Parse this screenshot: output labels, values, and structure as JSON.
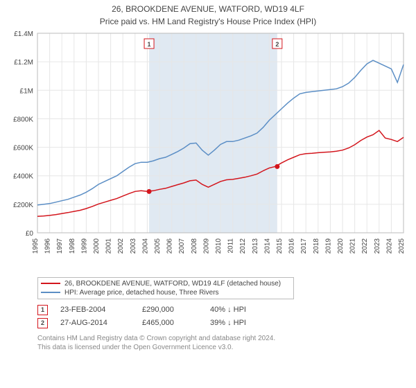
{
  "chart": {
    "title": "26, BROOKDENE AVENUE, WATFORD, WD19 4LF",
    "subtitle": "Price paid vs. HM Land Registry's House Price Index (HPI)",
    "type": "line",
    "background_color": "#ffffff",
    "grid_color": "#e6e6e6",
    "shade_color": "#e0e9f2",
    "shade_xstart": 2004.15,
    "shade_xend": 2014.65,
    "xlim": [
      1995,
      2025
    ],
    "ylim": [
      0,
      1400000
    ],
    "ytick_step": 200000,
    "ytick_labels": [
      "£0",
      "£200K",
      "£400K",
      "£600K",
      "£800K",
      "£1M",
      "£1.2M",
      "£1.4M"
    ],
    "xtick_step": 1,
    "label_fontsize": 11,
    "tick_fontsize": 10,
    "line_width": 1.5,
    "series": [
      {
        "name": "hpi",
        "label": "HPI: Average price, detached house, Three Rivers",
        "color": "#5b8ec5",
        "data": [
          [
            1995,
            195000
          ],
          [
            1995.5,
            200000
          ],
          [
            1996,
            205000
          ],
          [
            1996.5,
            215000
          ],
          [
            1997,
            225000
          ],
          [
            1997.5,
            235000
          ],
          [
            1998,
            250000
          ],
          [
            1998.5,
            265000
          ],
          [
            1999,
            285000
          ],
          [
            1999.5,
            310000
          ],
          [
            2000,
            340000
          ],
          [
            2000.5,
            360000
          ],
          [
            2001,
            380000
          ],
          [
            2001.5,
            400000
          ],
          [
            2002,
            430000
          ],
          [
            2002.5,
            460000
          ],
          [
            2003,
            485000
          ],
          [
            2003.5,
            495000
          ],
          [
            2004,
            495000
          ],
          [
            2004.5,
            505000
          ],
          [
            2005,
            520000
          ],
          [
            2005.5,
            530000
          ],
          [
            2006,
            550000
          ],
          [
            2006.5,
            570000
          ],
          [
            2007,
            595000
          ],
          [
            2007.5,
            625000
          ],
          [
            2008,
            630000
          ],
          [
            2008.5,
            580000
          ],
          [
            2009,
            545000
          ],
          [
            2009.5,
            580000
          ],
          [
            2010,
            620000
          ],
          [
            2010.5,
            640000
          ],
          [
            2011,
            640000
          ],
          [
            2011.5,
            650000
          ],
          [
            2012,
            665000
          ],
          [
            2012.5,
            680000
          ],
          [
            2013,
            700000
          ],
          [
            2013.5,
            740000
          ],
          [
            2014,
            790000
          ],
          [
            2014.5,
            830000
          ],
          [
            2015,
            870000
          ],
          [
            2015.5,
            910000
          ],
          [
            2016,
            945000
          ],
          [
            2016.5,
            975000
          ],
          [
            2017,
            985000
          ],
          [
            2017.5,
            990000
          ],
          [
            2018,
            995000
          ],
          [
            2018.5,
            1000000
          ],
          [
            2019,
            1005000
          ],
          [
            2019.5,
            1010000
          ],
          [
            2020,
            1025000
          ],
          [
            2020.5,
            1050000
          ],
          [
            2021,
            1090000
          ],
          [
            2021.5,
            1140000
          ],
          [
            2022,
            1185000
          ],
          [
            2022.5,
            1210000
          ],
          [
            2023,
            1190000
          ],
          [
            2023.5,
            1170000
          ],
          [
            2024,
            1150000
          ],
          [
            2024.5,
            1055000
          ],
          [
            2025,
            1180000
          ]
        ]
      },
      {
        "name": "property",
        "label": "26, BROOKDENE AVENUE, WATFORD, WD19 4LF (detached house)",
        "color": "#d3151c",
        "data": [
          [
            1995,
            115000
          ],
          [
            1995.5,
            118000
          ],
          [
            1996,
            122000
          ],
          [
            1996.5,
            128000
          ],
          [
            1997,
            135000
          ],
          [
            1997.5,
            142000
          ],
          [
            1998,
            150000
          ],
          [
            1998.5,
            158000
          ],
          [
            1999,
            170000
          ],
          [
            1999.5,
            185000
          ],
          [
            2000,
            202000
          ],
          [
            2000.5,
            215000
          ],
          [
            2001,
            228000
          ],
          [
            2001.5,
            240000
          ],
          [
            2002,
            258000
          ],
          [
            2002.5,
            275000
          ],
          [
            2003,
            290000
          ],
          [
            2003.5,
            295000
          ],
          [
            2004,
            290000
          ],
          [
            2004.5,
            295000
          ],
          [
            2005,
            305000
          ],
          [
            2005.5,
            312000
          ],
          [
            2006,
            325000
          ],
          [
            2006.5,
            338000
          ],
          [
            2007,
            350000
          ],
          [
            2007.5,
            365000
          ],
          [
            2008,
            370000
          ],
          [
            2008.5,
            340000
          ],
          [
            2009,
            320000
          ],
          [
            2009.5,
            340000
          ],
          [
            2010,
            360000
          ],
          [
            2010.5,
            372000
          ],
          [
            2011,
            375000
          ],
          [
            2011.5,
            382000
          ],
          [
            2012,
            390000
          ],
          [
            2012.5,
            400000
          ],
          [
            2013,
            412000
          ],
          [
            2013.5,
            435000
          ],
          [
            2014,
            455000
          ],
          [
            2014.5,
            465000
          ],
          [
            2015,
            490000
          ],
          [
            2015.5,
            512000
          ],
          [
            2016,
            530000
          ],
          [
            2016.5,
            548000
          ],
          [
            2017,
            555000
          ],
          [
            2017.5,
            558000
          ],
          [
            2018,
            562000
          ],
          [
            2018.5,
            565000
          ],
          [
            2019,
            568000
          ],
          [
            2019.5,
            572000
          ],
          [
            2020,
            580000
          ],
          [
            2020.5,
            595000
          ],
          [
            2021,
            618000
          ],
          [
            2021.5,
            648000
          ],
          [
            2022,
            672000
          ],
          [
            2022.5,
            688000
          ],
          [
            2023,
            718000
          ],
          [
            2023.5,
            665000
          ],
          [
            2024,
            655000
          ],
          [
            2024.5,
            640000
          ],
          [
            2025,
            670000
          ]
        ]
      }
    ],
    "markers": [
      {
        "id": "1",
        "x": 2004.15,
        "y": 290000,
        "color": "#d3151c"
      },
      {
        "id": "2",
        "x": 2014.65,
        "y": 465000,
        "color": "#d3151c"
      }
    ]
  },
  "legend": {
    "rows": [
      {
        "color": "#d3151c",
        "label": "26, BROOKDENE AVENUE, WATFORD, WD19 4LF (detached house)"
      },
      {
        "color": "#5b8ec5",
        "label": "HPI: Average price, detached house, Three Rivers"
      }
    ]
  },
  "sales": [
    {
      "id": "1",
      "color": "#d3151c",
      "date": "23-FEB-2004",
      "price": "£290,000",
      "pct": "40% ↓ HPI"
    },
    {
      "id": "2",
      "color": "#d3151c",
      "date": "27-AUG-2014",
      "price": "£465,000",
      "pct": "39% ↓ HPI"
    }
  ],
  "footer": {
    "line1": "Contains HM Land Registry data © Crown copyright and database right 2024.",
    "line2": "This data is licensed under the Open Government Licence v3.0."
  }
}
